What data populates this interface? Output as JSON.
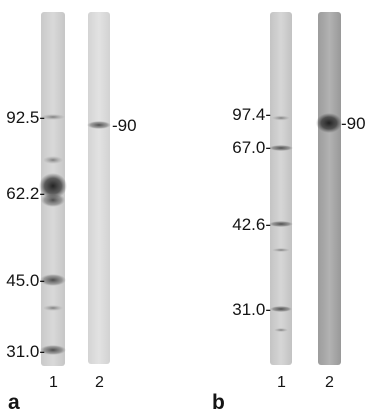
{
  "panels": [
    {
      "label": "a",
      "markers": [
        "92.5-",
        "62.2-",
        "45.0-",
        "31.0-"
      ],
      "band_label": "-90",
      "lane_numbers": [
        "1",
        "2"
      ]
    },
    {
      "label": "b",
      "markers": [
        "97.4-",
        "67.0-",
        "42.6-",
        "31.0-"
      ],
      "band_label": "-90",
      "lane_numbers": [
        "1",
        "2"
      ]
    }
  ]
}
